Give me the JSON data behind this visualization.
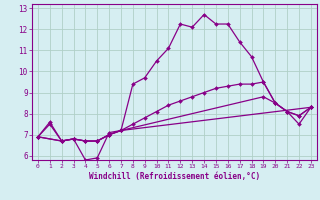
{
  "xlabel": "Windchill (Refroidissement éolien,°C)",
  "xlim": [
    -0.5,
    23.5
  ],
  "ylim": [
    5.8,
    13.2
  ],
  "xticks": [
    0,
    1,
    2,
    3,
    4,
    5,
    6,
    7,
    8,
    9,
    10,
    11,
    12,
    13,
    14,
    15,
    16,
    17,
    18,
    19,
    20,
    21,
    22,
    23
  ],
  "yticks": [
    6,
    7,
    8,
    9,
    10,
    11,
    12,
    13
  ],
  "bg_color": "#d6eef2",
  "grid_color": "#b0d0c8",
  "line_color": "#880088",
  "lines": [
    {
      "x": [
        0,
        1,
        2,
        3,
        4,
        5,
        6,
        7,
        8,
        9,
        10,
        11,
        12,
        13,
        14,
        15,
        16,
        17,
        18,
        19,
        20,
        21,
        22,
        23
      ],
      "y": [
        6.9,
        7.6,
        6.7,
        6.8,
        5.8,
        5.9,
        7.1,
        7.2,
        9.4,
        9.7,
        10.5,
        11.1,
        12.25,
        12.1,
        12.7,
        12.25,
        12.25,
        11.4,
        10.7,
        9.5,
        8.5,
        8.1,
        7.5,
        8.3
      ]
    },
    {
      "x": [
        0,
        2,
        3,
        4,
        5,
        6,
        7,
        23
      ],
      "y": [
        6.9,
        6.7,
        6.8,
        6.7,
        6.7,
        7.0,
        7.2,
        8.3
      ]
    },
    {
      "x": [
        0,
        2,
        3,
        4,
        5,
        6,
        7,
        19,
        20,
        21,
        22,
        23
      ],
      "y": [
        6.9,
        6.7,
        6.8,
        6.7,
        6.7,
        7.0,
        7.2,
        8.8,
        8.5,
        8.1,
        7.9,
        8.3
      ]
    },
    {
      "x": [
        0,
        1,
        2,
        3,
        4,
        5,
        6,
        7,
        8,
        9,
        10,
        11,
        12,
        13,
        14,
        15,
        16,
        17,
        18,
        19,
        20,
        21,
        22,
        23
      ],
      "y": [
        6.9,
        7.5,
        6.7,
        6.8,
        6.7,
        6.7,
        7.0,
        7.2,
        7.5,
        7.8,
        8.1,
        8.4,
        8.6,
        8.8,
        9.0,
        9.2,
        9.3,
        9.4,
        9.4,
        9.5,
        8.5,
        8.1,
        7.9,
        8.3
      ]
    }
  ]
}
